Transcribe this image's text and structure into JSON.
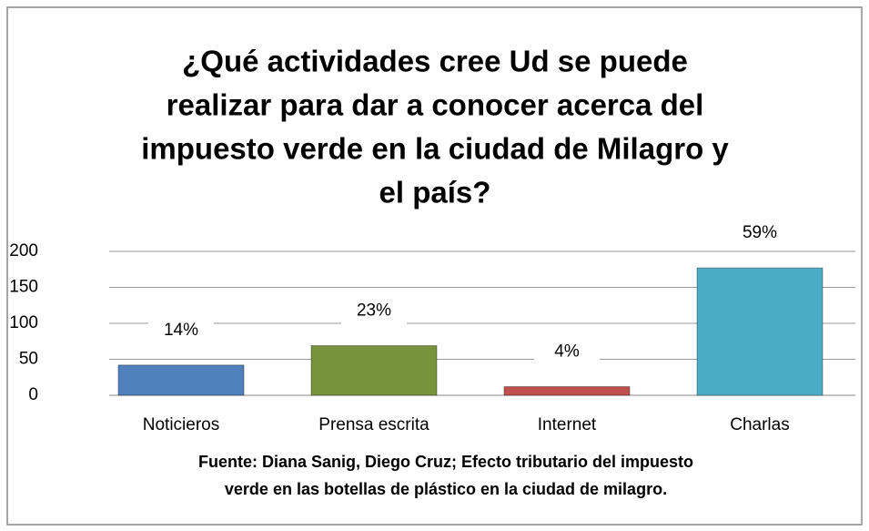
{
  "chart_data": {
    "type": "bar",
    "title": [
      "¿Qué actividades cree Ud se puede",
      "realizar para dar a conocer acerca del",
      "impuesto verde en la ciudad de Milagro y",
      "el país?"
    ],
    "source": [
      "Fuente: Diana Sanig, Diego Cruz; Efecto tributario del impuesto",
      "verde en las botellas de plástico en la ciudad de milagro."
    ],
    "categories": [
      "Noticieros",
      "Prensa escrita",
      "Internet",
      "Charlas"
    ],
    "values": [
      42,
      69,
      12,
      177
    ],
    "value_labels": [
      "14%",
      "23%",
      "4%",
      "59%"
    ],
    "colors": [
      "#4f81bd",
      "#77933c",
      "#c0504d",
      "#4bacc6"
    ],
    "ylim": [
      0,
      200
    ],
    "yticks": [
      0,
      50,
      100,
      150,
      200
    ],
    "grid": true
  }
}
